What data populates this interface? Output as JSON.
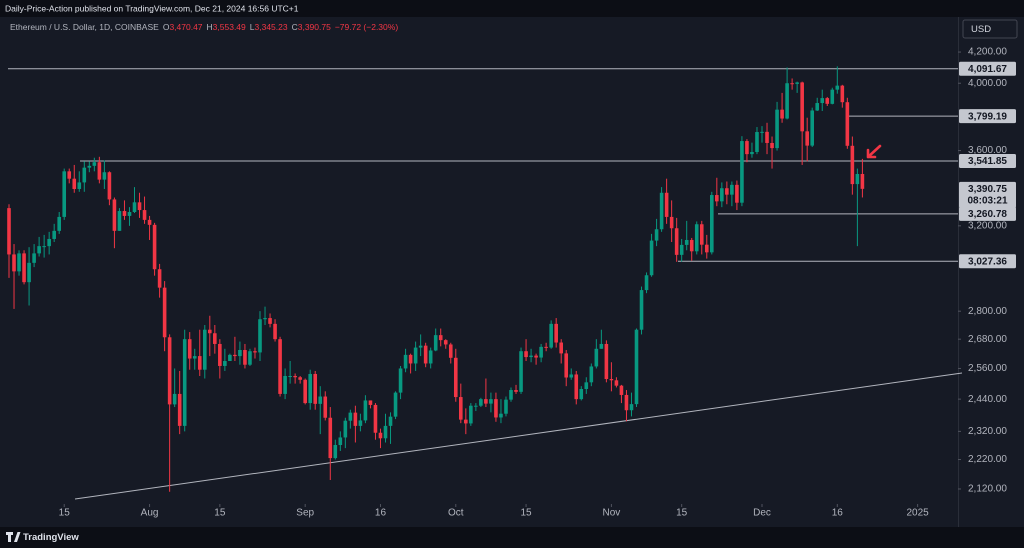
{
  "header": {
    "text": "Daily-Price-Action published on TradingView.com, Dec 21, 2024 16:56 UTC+1"
  },
  "footer": {
    "brand": "TradingView"
  },
  "chart_data": {
    "type": "candlestick",
    "currency": "USD",
    "legend": {
      "symbol": "Ethereum / U.S. Dollar, 1D, COINBASE",
      "fields": [
        {
          "key": "O",
          "value": "3,470.47"
        },
        {
          "key": "H",
          "value": "3,553.49"
        },
        {
          "key": "L",
          "value": "3,345.23"
        },
        {
          "key": "C",
          "value": "3,390.75"
        }
      ],
      "change": "−79.72 (−2.30%)"
    },
    "up_color": "#089981",
    "down_color": "#f23645",
    "y_scale": "log",
    "ylim": [
      2074,
      4416
    ],
    "yticks": [
      {
        "value": 2120,
        "label": "2,120.00"
      },
      {
        "value": 2220,
        "label": "2,220.00"
      },
      {
        "value": 2320,
        "label": "2,320.00"
      },
      {
        "value": 2440,
        "label": "2,440.00"
      },
      {
        "value": 2560,
        "label": "2,560.00"
      },
      {
        "value": 2680,
        "label": "2,680.00"
      },
      {
        "value": 2800,
        "label": "2,800.00"
      },
      {
        "value": 3200,
        "label": "3,200.00"
      },
      {
        "value": 3600,
        "label": "3,600.00"
      },
      {
        "value": 4000,
        "label": "4,000.00"
      },
      {
        "value": 4200,
        "label": "4,200.00"
      }
    ],
    "grid": false,
    "levels": [
      {
        "value": 4091.67,
        "label": "4,091.67"
      },
      {
        "value": 3799.19,
        "label": "3,799.19"
      },
      {
        "value": 3541.85,
        "label": "3,541.85"
      },
      {
        "value": 3260.78,
        "label": "3,260.78"
      },
      {
        "value": 3027.36,
        "label": "3,027.36"
      }
    ],
    "last_price": {
      "value": 3390.75,
      "label": "3,390.75"
    },
    "countdown": "08:03:21",
    "categories": [
      null,
      null,
      null,
      null,
      null,
      null,
      null,
      null,
      null,
      null,
      null,
      "15",
      null,
      null,
      null,
      null,
      null,
      null,
      null,
      null,
      null,
      null,
      null,
      null,
      null,
      null,
      null,
      null,
      "Aug",
      null,
      null,
      null,
      null,
      null,
      null,
      null,
      null,
      null,
      null,
      null,
      null,
      null,
      "15",
      null,
      null,
      null,
      null,
      null,
      null,
      null,
      null,
      null,
      null,
      null,
      null,
      null,
      null,
      null,
      null,
      "Sep",
      null,
      null,
      null,
      null,
      null,
      null,
      null,
      null,
      null,
      null,
      null,
      null,
      null,
      null,
      "16",
      null,
      null,
      null,
      null,
      null,
      null,
      null,
      null,
      null,
      null,
      null,
      null,
      null,
      null,
      "Oct",
      null,
      null,
      null,
      null,
      null,
      null,
      null,
      null,
      null,
      null,
      null,
      null,
      null,
      "15",
      null,
      null,
      null,
      null,
      null,
      null,
      null,
      null,
      null,
      null,
      null,
      null,
      null,
      null,
      null,
      null,
      "Nov",
      null,
      null,
      null,
      null,
      null,
      null,
      null,
      null,
      null,
      null,
      null,
      null,
      null,
      "15",
      null,
      null,
      null,
      null,
      null,
      null,
      null,
      null,
      null,
      null,
      null,
      null,
      null,
      null,
      null,
      "Dec",
      null,
      null,
      null,
      null,
      null,
      null,
      null,
      null,
      null,
      null,
      null,
      null,
      null,
      null,
      "16",
      null,
      null,
      null,
      null,
      null,
      null,
      null,
      null,
      null,
      null,
      null,
      null,
      null,
      null,
      null,
      "2025"
    ],
    "open": [
      3290,
      3060,
      2980,
      3065,
      2930,
      3020,
      3065,
      3100,
      3100,
      3135,
      3175,
      3245,
      3485,
      3445,
      3390,
      3425,
      3505,
      3515,
      3535,
      3440,
      3480,
      3335,
      3175,
      3275,
      3250,
      3270,
      3320,
      3280,
      3230,
      3205,
      2990,
      2905,
      2688,
      2420,
      2460,
      2340,
      2680,
      2600,
      2610,
      2555,
      2720,
      2705,
      2660,
      2570,
      2590,
      2615,
      2610,
      2635,
      2575,
      2630,
      2625,
      2765,
      2770,
      2745,
      2680,
      2460,
      2530,
      2530,
      2525,
      2515,
      2425,
      2538,
      2422,
      2450,
      2370,
      2225,
      2271,
      2298,
      2359,
      2389,
      2340,
      2360,
      2435,
      2418,
      2315,
      2295,
      2340,
      2374,
      2465,
      2560,
      2615,
      2580,
      2645,
      2653,
      2580,
      2633,
      2697,
      2676,
      2658,
      2603,
      2448,
      2363,
      2349,
      2415,
      2415,
      2440,
      2423,
      2440,
      2371,
      2385,
      2438,
      2475,
      2468,
      2630,
      2606,
      2612,
      2604,
      2648,
      2645,
      2745,
      2666,
      2621,
      2524,
      2536,
      2440,
      2479,
      2505,
      2568,
      2640,
      2660,
      2518,
      2513,
      2492,
      2456,
      2398,
      2421,
      2720,
      2894,
      2962,
      3127,
      3183,
      3370,
      3245,
      3188,
      3058,
      3106,
      3130,
      3075,
      3208,
      3107,
      3070,
      3358,
      3325,
      3394,
      3360,
      3412,
      3318,
      3654,
      3580,
      3592,
      3706,
      3707,
      3643,
      3614,
      3838,
      3785,
      4000,
      3996,
      4005,
      3710,
      3628,
      3833,
      3878,
      3908,
      3873,
      3960,
      3985,
      3883,
      3627,
      3416,
      3470.47,
      null,
      null,
      null,
      null,
      null,
      null,
      null,
      null,
      null,
      null,
      null
    ],
    "high": [
      3310,
      3110,
      3080,
      3080,
      3095,
      3110,
      3145,
      3155,
      3170,
      3210,
      3270,
      3500,
      3500,
      3520,
      3485,
      3540,
      3540,
      3560,
      3565,
      3545,
      3485,
      3345,
      3290,
      3330,
      3295,
      3400,
      3370,
      3350,
      3250,
      3215,
      3015,
      2935,
      2700,
      2560,
      2550,
      2720,
      2710,
      2640,
      2720,
      2740,
      2780,
      2740,
      2680,
      2640,
      2620,
      2690,
      2670,
      2660,
      2640,
      2645,
      2800,
      2820,
      2790,
      2765,
      2690,
      2560,
      2590,
      2540,
      2530,
      2520,
      2555,
      2550,
      2490,
      2470,
      2410,
      2290,
      2320,
      2370,
      2400,
      2415,
      2385,
      2455,
      2435,
      2425,
      2330,
      2385,
      2390,
      2470,
      2570,
      2640,
      2620,
      2670,
      2700,
      2665,
      2645,
      2725,
      2725,
      2680,
      2665,
      2640,
      2500,
      2405,
      2425,
      2425,
      2445,
      2520,
      2465,
      2465,
      2440,
      2450,
      2485,
      2495,
      2645,
      2680,
      2640,
      2620,
      2660,
      2665,
      2760,
      2770,
      2680,
      2635,
      2560,
      2550,
      2490,
      2525,
      2580,
      2680,
      2720,
      2675,
      2585,
      2525,
      2495,
      2475,
      2465,
      2725,
      2910,
      2975,
      3160,
      3235,
      3400,
      3445,
      3330,
      3240,
      3135,
      3225,
      3140,
      3222,
      3225,
      3155,
      3375,
      3450,
      3425,
      3430,
      3430,
      3435,
      3682,
      3665,
      3645,
      3735,
      3740,
      3760,
      3680,
      3885,
      3940,
      4100,
      4030,
      4010,
      4010,
      3790,
      3850,
      3910,
      3960,
      3915,
      3972,
      4107,
      3990,
      3910,
      3680,
      3500,
      3553.49,
      null,
      null,
      null,
      null,
      null,
      null,
      null,
      null,
      null,
      null,
      null
    ],
    "low": [
      2950,
      2810,
      2960,
      2920,
      2825,
      3000,
      3050,
      3045,
      3060,
      3120,
      3160,
      3230,
      3420,
      3370,
      3375,
      3375,
      3480,
      3485,
      3420,
      3390,
      3305,
      3090,
      3175,
      3230,
      3200,
      3265,
      3240,
      3210,
      3130,
      2960,
      2860,
      2630,
      2111,
      2410,
      2310,
      2320,
      2555,
      2555,
      2530,
      2520,
      2610,
      2620,
      2520,
      2550,
      2590,
      2590,
      2575,
      2560,
      2570,
      2600,
      2590,
      2740,
      2730,
      2670,
      2450,
      2440,
      2500,
      2500,
      2500,
      2420,
      2400,
      2400,
      2310,
      2360,
      2150,
      2220,
      2250,
      2260,
      2330,
      2280,
      2320,
      2350,
      2405,
      2290,
      2260,
      2280,
      2275,
      2365,
      2440,
      2545,
      2540,
      2550,
      2610,
      2565,
      2560,
      2630,
      2650,
      2640,
      2580,
      2430,
      2350,
      2310,
      2340,
      2395,
      2410,
      2410,
      2390,
      2355,
      2350,
      2375,
      2430,
      2460,
      2460,
      2590,
      2585,
      2575,
      2585,
      2630,
      2640,
      2645,
      2580,
      2490,
      2515,
      2420,
      2435,
      2460,
      2490,
      2560,
      2640,
      2505,
      2470,
      2485,
      2425,
      2357,
      2375,
      2410,
      2700,
      2880,
      2955,
      3100,
      3170,
      3210,
      3120,
      3025,
      3025,
      3080,
      3030,
      3060,
      3060,
      3040,
      3060,
      3300,
      3295,
      3310,
      3300,
      3280,
      3300,
      3535,
      3560,
      3580,
      3645,
      3580,
      3500,
      3600,
      3760,
      3780,
      3960,
      3940,
      3520,
      3540,
      3620,
      3830,
      3830,
      3860,
      3870,
      3935,
      3850,
      3610,
      3360,
      3100,
      3345.23,
      null,
      null,
      null,
      null,
      null,
      null,
      null,
      null,
      null,
      null,
      null
    ],
    "close": [
      3060,
      2980,
      3065,
      2930,
      3020,
      3065,
      3100,
      3100,
      3135,
      3175,
      3245,
      3485,
      3445,
      3390,
      3425,
      3505,
      3515,
      3535,
      3440,
      3480,
      3335,
      3175,
      3275,
      3250,
      3270,
      3320,
      3280,
      3230,
      3205,
      2990,
      2905,
      2688,
      2420,
      2460,
      2340,
      2680,
      2600,
      2610,
      2555,
      2720,
      2705,
      2660,
      2570,
      2590,
      2615,
      2610,
      2635,
      2575,
      2630,
      2625,
      2765,
      2770,
      2745,
      2680,
      2460,
      2530,
      2530,
      2525,
      2515,
      2425,
      2538,
      2422,
      2450,
      2370,
      2225,
      2271,
      2298,
      2359,
      2389,
      2340,
      2360,
      2435,
      2418,
      2315,
      2295,
      2340,
      2374,
      2465,
      2560,
      2615,
      2580,
      2645,
      2653,
      2580,
      2633,
      2697,
      2676,
      2658,
      2603,
      2448,
      2363,
      2349,
      2415,
      2415,
      2440,
      2423,
      2440,
      2371,
      2385,
      2438,
      2475,
      2468,
      2630,
      2606,
      2612,
      2604,
      2648,
      2645,
      2745,
      2666,
      2621,
      2524,
      2536,
      2440,
      2479,
      2505,
      2568,
      2640,
      2660,
      2518,
      2513,
      2492,
      2456,
      2398,
      2421,
      2720,
      2894,
      2962,
      3127,
      3183,
      3370,
      3245,
      3188,
      3058,
      3106,
      3130,
      3075,
      3208,
      3107,
      3070,
      3358,
      3325,
      3394,
      3360,
      3412,
      3318,
      3654,
      3580,
      3592,
      3706,
      3707,
      3643,
      3614,
      3838,
      3785,
      4000,
      3996,
      4005,
      3710,
      3628,
      3833,
      3878,
      3908,
      3873,
      3960,
      3985,
      3883,
      3627,
      3416,
      3470.47,
      3390.75,
      null,
      null,
      null,
      null,
      null,
      null,
      null,
      null,
      null,
      null,
      null
    ]
  }
}
